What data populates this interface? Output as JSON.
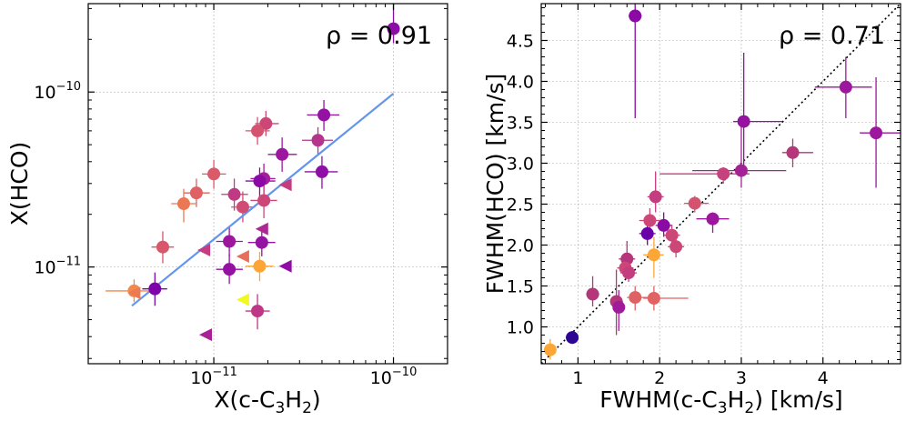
{
  "colors": {
    "regression_line": "#6495ed",
    "diagonal_line": "#000000",
    "grid": "#b0b0b0"
  },
  "chart_data": [
    {
      "type": "scatter",
      "xscale": "log",
      "yscale": "log",
      "xlim": [
        2e-12,
        2e-10
      ],
      "ylim": [
        2.8e-12,
        3.2e-10
      ],
      "grid": true,
      "xlabel": "X(c-C3H2)",
      "ylabel": "X(HCO)",
      "xlabel_parts": {
        "pre": "X(c-C",
        "s1": "3",
        "mid": "H",
        "s2": "2",
        "post": ")"
      },
      "annotation": "ρ = 0.91",
      "xticks": [
        {
          "value": 1e-11,
          "base": "10",
          "exp": "−11"
        },
        {
          "value": 1e-10,
          "base": "10",
          "exp": "−10"
        }
      ],
      "yticks": [
        {
          "value": 1e-11,
          "base": "10",
          "exp": "−11"
        },
        {
          "value": 1e-10,
          "base": "10",
          "exp": "−10"
        }
      ],
      "fit_line": {
        "x": [
          3.5e-12,
          1e-10
        ],
        "y": [
          6e-12,
          9.8e-11
        ]
      },
      "points": [
        {
          "x": 1e-10,
          "y": 2.3e-10,
          "color": "#8a0ea5",
          "xerr": [
            9.3e-11,
            1.08e-10
          ],
          "yerr": [
            1.9e-10,
            3.2e-10
          ]
        },
        {
          "x": 4.1e-11,
          "y": 7.4e-11,
          "color": "#9412a3",
          "xerr": [
            3.3e-11,
            5e-11
          ],
          "yerr": [
            6e-11,
            9e-11
          ]
        },
        {
          "x": 3.8e-11,
          "y": 5.3e-11,
          "color": "#b3368c",
          "xerr": [
            3.1e-11,
            4.6e-11
          ],
          "yerr": [
            4.4e-11,
            6.3e-11
          ]
        },
        {
          "x": 4e-11,
          "y": 3.5e-11,
          "color": "#8e0ea6",
          "xerr": [
            3.2e-11,
            4.9e-11
          ],
          "yerr": [
            2.8e-11,
            4.3e-11
          ]
        },
        {
          "x": 2.4e-11,
          "y": 4.4e-11,
          "color": "#9c179e",
          "xerr": [
            2e-11,
            2.9e-11
          ],
          "yerr": [
            3.5e-11,
            5.5e-11
          ]
        },
        {
          "x": 1.95e-11,
          "y": 6.6e-11,
          "color": "#cc4778",
          "xerr": [
            1.7e-11,
            2.3e-11
          ],
          "yerr": [
            5.6e-11,
            7.8e-11
          ]
        },
        {
          "x": 1.75e-11,
          "y": 6e-11,
          "color": "#d5536f",
          "xerr": [
            1.5e-11,
            2.05e-11
          ],
          "yerr": [
            5e-11,
            7.2e-11
          ]
        },
        {
          "x": 1.9e-11,
          "y": 3.2e-11,
          "color": "#a31e9a",
          "xerr": [
            1.6e-11,
            2.2e-11
          ],
          "yerr": [
            2.6e-11,
            3.9e-11
          ]
        },
        {
          "x": 1.8e-11,
          "y": 3.1e-11,
          "color": "#8b0aa5",
          "xerr": [
            1.5e-11,
            2.2e-11
          ],
          "yerr": [
            2.5e-11,
            3.7e-11
          ]
        },
        {
          "x": 1e-11,
          "y": 3.4e-11,
          "color": "#da5a6a",
          "xerr": [
            8.6e-12,
            1.17e-11
          ],
          "yerr": [
            2.8e-11,
            4.1e-11
          ]
        },
        {
          "x": 8e-12,
          "y": 2.65e-11,
          "color": "#de6164",
          "xerr": [
            6.8e-12,
            9.5e-12
          ],
          "yerr": [
            2.2e-11,
            3.2e-11
          ]
        },
        {
          "x": 6.8e-12,
          "y": 2.3e-11,
          "color": "#ec7853",
          "xerr": [
            5.8e-12,
            8e-12
          ],
          "yerr": [
            1.8e-11,
            2.8e-11
          ]
        },
        {
          "x": 1.3e-11,
          "y": 2.6e-11,
          "color": "#c03a83",
          "xerr": [
            1.1e-11,
            1.55e-11
          ],
          "yerr": [
            2.1e-11,
            3.2e-11
          ]
        },
        {
          "x": 1.45e-11,
          "y": 2.2e-11,
          "color": "#cf4c74",
          "xerr": [
            1.25e-11,
            1.7e-11
          ],
          "yerr": [
            1.8e-11,
            2.7e-11
          ]
        },
        {
          "x": 1.9e-11,
          "y": 2.4e-11,
          "color": "#cc4778",
          "xerr": [
            1.6e-11,
            2.25e-11
          ],
          "yerr": [
            1.9e-11,
            3e-11
          ]
        },
        {
          "x": 5.2e-12,
          "y": 1.3e-11,
          "color": "#d8576b",
          "xerr": [
            4.5e-12,
            6e-12
          ],
          "yerr": [
            1.05e-11,
            1.6e-11
          ]
        },
        {
          "x": 1.22e-11,
          "y": 1.4e-11,
          "color": "#9c179e",
          "xerr": [
            1.03e-11,
            1.45e-11
          ],
          "yerr": [
            1.15e-11,
            1.7e-11
          ]
        },
        {
          "x": 1.85e-11,
          "y": 1.38e-11,
          "color": "#9313a2",
          "xerr": [
            1.55e-11,
            2.2e-11
          ],
          "yerr": [
            1.15e-11,
            1.65e-11
          ]
        },
        {
          "x": 1.22e-11,
          "y": 9.7e-12,
          "color": "#9511a1",
          "xerr": [
            1.03e-11,
            1.45e-11
          ],
          "yerr": [
            8e-12,
            1.18e-11
          ]
        },
        {
          "x": 1.8e-11,
          "y": 1.01e-11,
          "color": "#fca636",
          "xerr": [
            1.5e-11,
            2.15e-11
          ],
          "yerr": [
            8.3e-12,
            1.22e-11
          ]
        },
        {
          "x": 4.7e-12,
          "y": 7.5e-12,
          "color": "#7e03a8",
          "xerr": [
            4e-12,
            5.5e-12
          ],
          "yerr": [
            6e-12,
            9.3e-12
          ]
        },
        {
          "x": 3.6e-12,
          "y": 7.3e-12,
          "color": "#f48849",
          "xerr": [
            2.5e-12,
            4.6e-12
          ],
          "yerr": [
            6.3e-12,
            8.5e-12
          ]
        },
        {
          "x": 1.75e-11,
          "y": 5.6e-12,
          "color": "#bd3786",
          "xerr": [
            1.5e-11,
            2.05e-11
          ],
          "yerr": [
            4.4e-12,
            7e-12
          ]
        }
      ],
      "upper_limits": [
        {
          "x": 2.5e-11,
          "y": 2.95e-11,
          "color": "#c43e7f"
        },
        {
          "x": 1.85e-11,
          "y": 1.65e-11,
          "color": "#ae2892"
        },
        {
          "x": 8.8e-12,
          "y": 1.25e-11,
          "color": "#c33d80"
        },
        {
          "x": 1.45e-11,
          "y": 1.15e-11,
          "color": "#e76e5b"
        },
        {
          "x": 2.5e-11,
          "y": 1.01e-11,
          "color": "#8f0da4"
        },
        {
          "x": 3.6e-12,
          "y": 7.1e-12,
          "color": "#ee7a51"
        },
        {
          "x": 1.45e-11,
          "y": 6.5e-12,
          "color": "#f0f921"
        },
        {
          "x": 9e-12,
          "y": 4.1e-12,
          "color": "#a82296"
        }
      ]
    },
    {
      "type": "scatter",
      "xlim": [
        0.55,
        4.95
      ],
      "ylim": [
        0.55,
        4.95
      ],
      "grid": true,
      "xlabel": "FWHM(c-C3H2) [km/s]",
      "ylabel": "FWHM(HCO) [km/s]",
      "xlabel_parts": {
        "pre": "FWHM(c-C",
        "s1": "3",
        "mid": "H",
        "s2": "2",
        "post": ") [km/s]"
      },
      "annotation": "ρ = 0.71",
      "xticks": [
        "1",
        "2",
        "3",
        "4"
      ],
      "yticks": [
        "1.0",
        "1.5",
        "2.0",
        "2.5",
        "3.0",
        "3.5",
        "4.0",
        "4.5"
      ],
      "diagonal": true,
      "points": [
        {
          "x": 1.7,
          "y": 4.8,
          "color": "#8b0aa5",
          "xerr": [
            1.62,
            1.78
          ],
          "yerr": [
            3.55,
            4.95
          ]
        },
        {
          "x": 4.28,
          "y": 3.93,
          "color": "#9c179e",
          "xerr": [
            3.9,
            4.6
          ],
          "yerr": [
            3.55,
            4.3
          ]
        },
        {
          "x": 4.65,
          "y": 3.37,
          "color": "#9c179e",
          "xerr": [
            4.45,
            4.95
          ],
          "yerr": [
            2.7,
            4.05
          ]
        },
        {
          "x": 3.03,
          "y": 3.51,
          "color": "#9511a1",
          "xerr": [
            2.9,
            3.5
          ],
          "yerr": [
            2.95,
            4.35
          ]
        },
        {
          "x": 3.63,
          "y": 3.13,
          "color": "#b5367a",
          "xerr": [
            3.5,
            3.88
          ],
          "yerr": [
            2.95,
            3.3
          ]
        },
        {
          "x": 3.0,
          "y": 2.91,
          "color": "#a32396",
          "xerr": [
            2.4,
            3.55
          ],
          "yerr": [
            2.7,
            3.45
          ]
        },
        {
          "x": 2.78,
          "y": 2.87,
          "color": "#c6417d",
          "xerr": [
            2.0,
            3.1
          ],
          "yerr": [
            2.75,
            2.95
          ]
        },
        {
          "x": 2.65,
          "y": 2.32,
          "color": "#9c179e",
          "xerr": [
            2.45,
            2.85
          ],
          "yerr": [
            2.15,
            2.4
          ]
        },
        {
          "x": 2.43,
          "y": 2.51,
          "color": "#d5536f",
          "xerr": [
            2.3,
            2.6
          ],
          "yerr": [
            2.4,
            2.6
          ]
        },
        {
          "x": 1.95,
          "y": 2.59,
          "color": "#c43e7f",
          "xerr": [
            1.85,
            2.05
          ],
          "yerr": [
            2.4,
            2.9
          ]
        },
        {
          "x": 1.88,
          "y": 2.3,
          "color": "#cc4778",
          "xerr": [
            1.75,
            2.0
          ],
          "yerr": [
            2.15,
            2.45
          ]
        },
        {
          "x": 2.05,
          "y": 2.24,
          "color": "#8b0aa5",
          "xerr": [
            1.95,
            2.15
          ],
          "yerr": [
            2.1,
            2.4
          ]
        },
        {
          "x": 2.15,
          "y": 2.12,
          "color": "#cc4778",
          "xerr": [
            2.05,
            2.25
          ],
          "yerr": [
            2.0,
            2.25
          ]
        },
        {
          "x": 2.2,
          "y": 1.98,
          "color": "#cc4778",
          "xerr": [
            2.1,
            2.3
          ],
          "yerr": [
            1.85,
            2.1
          ]
        },
        {
          "x": 1.85,
          "y": 2.14,
          "color": "#6a00a8",
          "xerr": [
            1.75,
            1.95
          ],
          "yerr": [
            2.0,
            2.3
          ]
        },
        {
          "x": 1.6,
          "y": 1.83,
          "color": "#b5367a",
          "xerr": [
            1.5,
            1.7
          ],
          "yerr": [
            1.6,
            2.05
          ]
        },
        {
          "x": 1.58,
          "y": 1.72,
          "color": "#cc4778",
          "xerr": [
            1.48,
            1.68
          ],
          "yerr": [
            1.6,
            1.85
          ]
        },
        {
          "x": 1.62,
          "y": 1.66,
          "color": "#c33d80",
          "xerr": [
            1.52,
            1.72
          ],
          "yerr": [
            1.55,
            1.8
          ]
        },
        {
          "x": 1.93,
          "y": 1.88,
          "color": "#fca636",
          "xerr": [
            1.8,
            2.05
          ],
          "yerr": [
            1.6,
            2.1
          ]
        },
        {
          "x": 1.18,
          "y": 1.4,
          "color": "#b5367a",
          "xerr": [
            1.1,
            1.26
          ],
          "yerr": [
            1.25,
            1.62
          ]
        },
        {
          "x": 1.7,
          "y": 1.36,
          "color": "#de6164",
          "xerr": [
            1.6,
            1.95
          ],
          "yerr": [
            1.2,
            1.5
          ]
        },
        {
          "x": 1.93,
          "y": 1.35,
          "color": "#e06262",
          "xerr": [
            1.8,
            2.35
          ],
          "yerr": [
            1.2,
            1.5
          ]
        },
        {
          "x": 1.47,
          "y": 1.31,
          "color": "#b5367a",
          "xerr": [
            1.4,
            1.55
          ],
          "yerr": [
            0.9,
            1.7
          ]
        },
        {
          "x": 1.5,
          "y": 1.24,
          "color": "#a01b9b",
          "xerr": [
            1.45,
            1.55
          ],
          "yerr": [
            0.95,
            1.45
          ]
        },
        {
          "x": 0.93,
          "y": 0.87,
          "color": "#2d0594",
          "xerr": [
            0.85,
            1.0
          ],
          "yerr": [
            0.8,
            0.95
          ]
        },
        {
          "x": 0.66,
          "y": 0.72,
          "color": "#fca636",
          "xerr": [
            0.62,
            0.7
          ],
          "yerr": [
            0.6,
            0.85
          ]
        }
      ]
    }
  ]
}
